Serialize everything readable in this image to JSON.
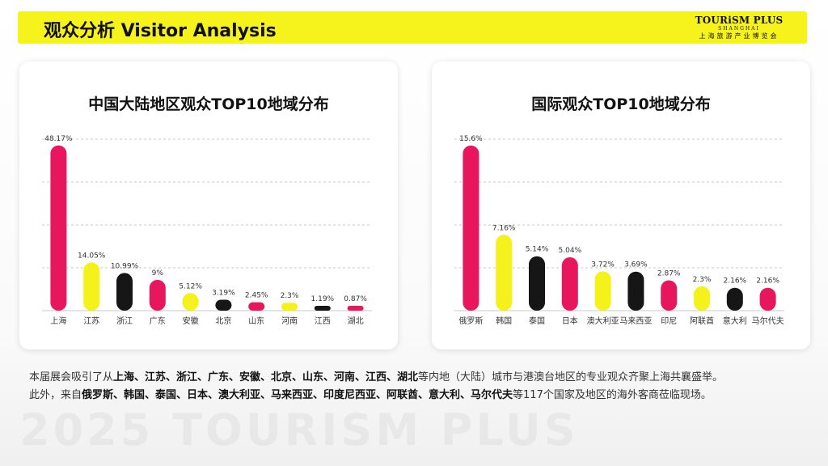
{
  "header": {
    "title": "观众分析  Visitor Analysis",
    "logo": {
      "main": "TOURiSM PLUS",
      "sub1": "SHANGHAI",
      "sub2": "上海旅游产业博览会"
    }
  },
  "footer": {
    "line1": [
      {
        "t": "本届展会吸引了从",
        "b": false
      },
      {
        "t": "上海、江苏、浙江、广东、安徽、北京、山东、河南、江西、湖北",
        "b": true
      },
      {
        "t": "等内地（大陆）城市与港澳台地区的专业观众齐聚上海共襄盛举。",
        "b": false
      }
    ],
    "line2": [
      {
        "t": "此外，来自",
        "b": false
      },
      {
        "t": "俄罗斯、韩国、泰国、日本、澳大利亚、马来西亚、印度尼西亚、阿联酋、意大利、马尔代夫",
        "b": true
      },
      {
        "t": "等117个国家及地区的海外客商莅临现场。",
        "b": false
      }
    ]
  },
  "watermark": "2025 TOURISM PLUS",
  "colors": {
    "pink": "#e8175d",
    "yellow": "#f4f21a",
    "black": "#161616",
    "header": "#f6f21c"
  },
  "chart_data": [
    {
      "id": "domestic",
      "type": "bar",
      "title": "中国大陆地区观众TOP10地域分布",
      "categories": [
        "上海",
        "江苏",
        "浙江",
        "广东",
        "安徽",
        "北京",
        "山东",
        "河南",
        "江西",
        "湖北"
      ],
      "values": [
        48.17,
        14.05,
        10.99,
        9,
        5.12,
        3.19,
        2.45,
        2.3,
        1.19,
        0.87
      ],
      "value_labels": [
        "48.17%",
        "14.05%",
        "10.99%",
        "9%",
        "5.12%",
        "3.19%",
        "2.45%",
        "2.3%",
        "1.19%",
        "0.87%"
      ],
      "bar_colors": [
        "pink",
        "yellow",
        "black",
        "pink",
        "yellow",
        "black",
        "pink",
        "yellow",
        "black",
        "pink"
      ],
      "ylim": [
        0,
        50
      ],
      "grid": "dashed",
      "legend": "none"
    },
    {
      "id": "intl",
      "type": "bar",
      "title": "国际观众TOP10地域分布",
      "categories": [
        "俄罗斯",
        "韩国",
        "泰国",
        "日本",
        "澳大利亚",
        "马来西亚",
        "印尼",
        "阿联酋",
        "意大利",
        "马尔代夫"
      ],
      "values": [
        15.6,
        7.16,
        5.14,
        5.04,
        3.72,
        3.69,
        2.87,
        2.3,
        2.16,
        2.16
      ],
      "value_labels": [
        "15.6%",
        "7.16%",
        "5.14%",
        "5.04%",
        "3.72%",
        "3.69%",
        "2.87%",
        "2.3%",
        "2.16%",
        "2.16%"
      ],
      "bar_colors": [
        "pink",
        "yellow",
        "black",
        "pink",
        "yellow",
        "black",
        "pink",
        "yellow",
        "black",
        "pink"
      ],
      "ylim": [
        0,
        16.2
      ],
      "grid": "dashed",
      "legend": "none"
    }
  ]
}
